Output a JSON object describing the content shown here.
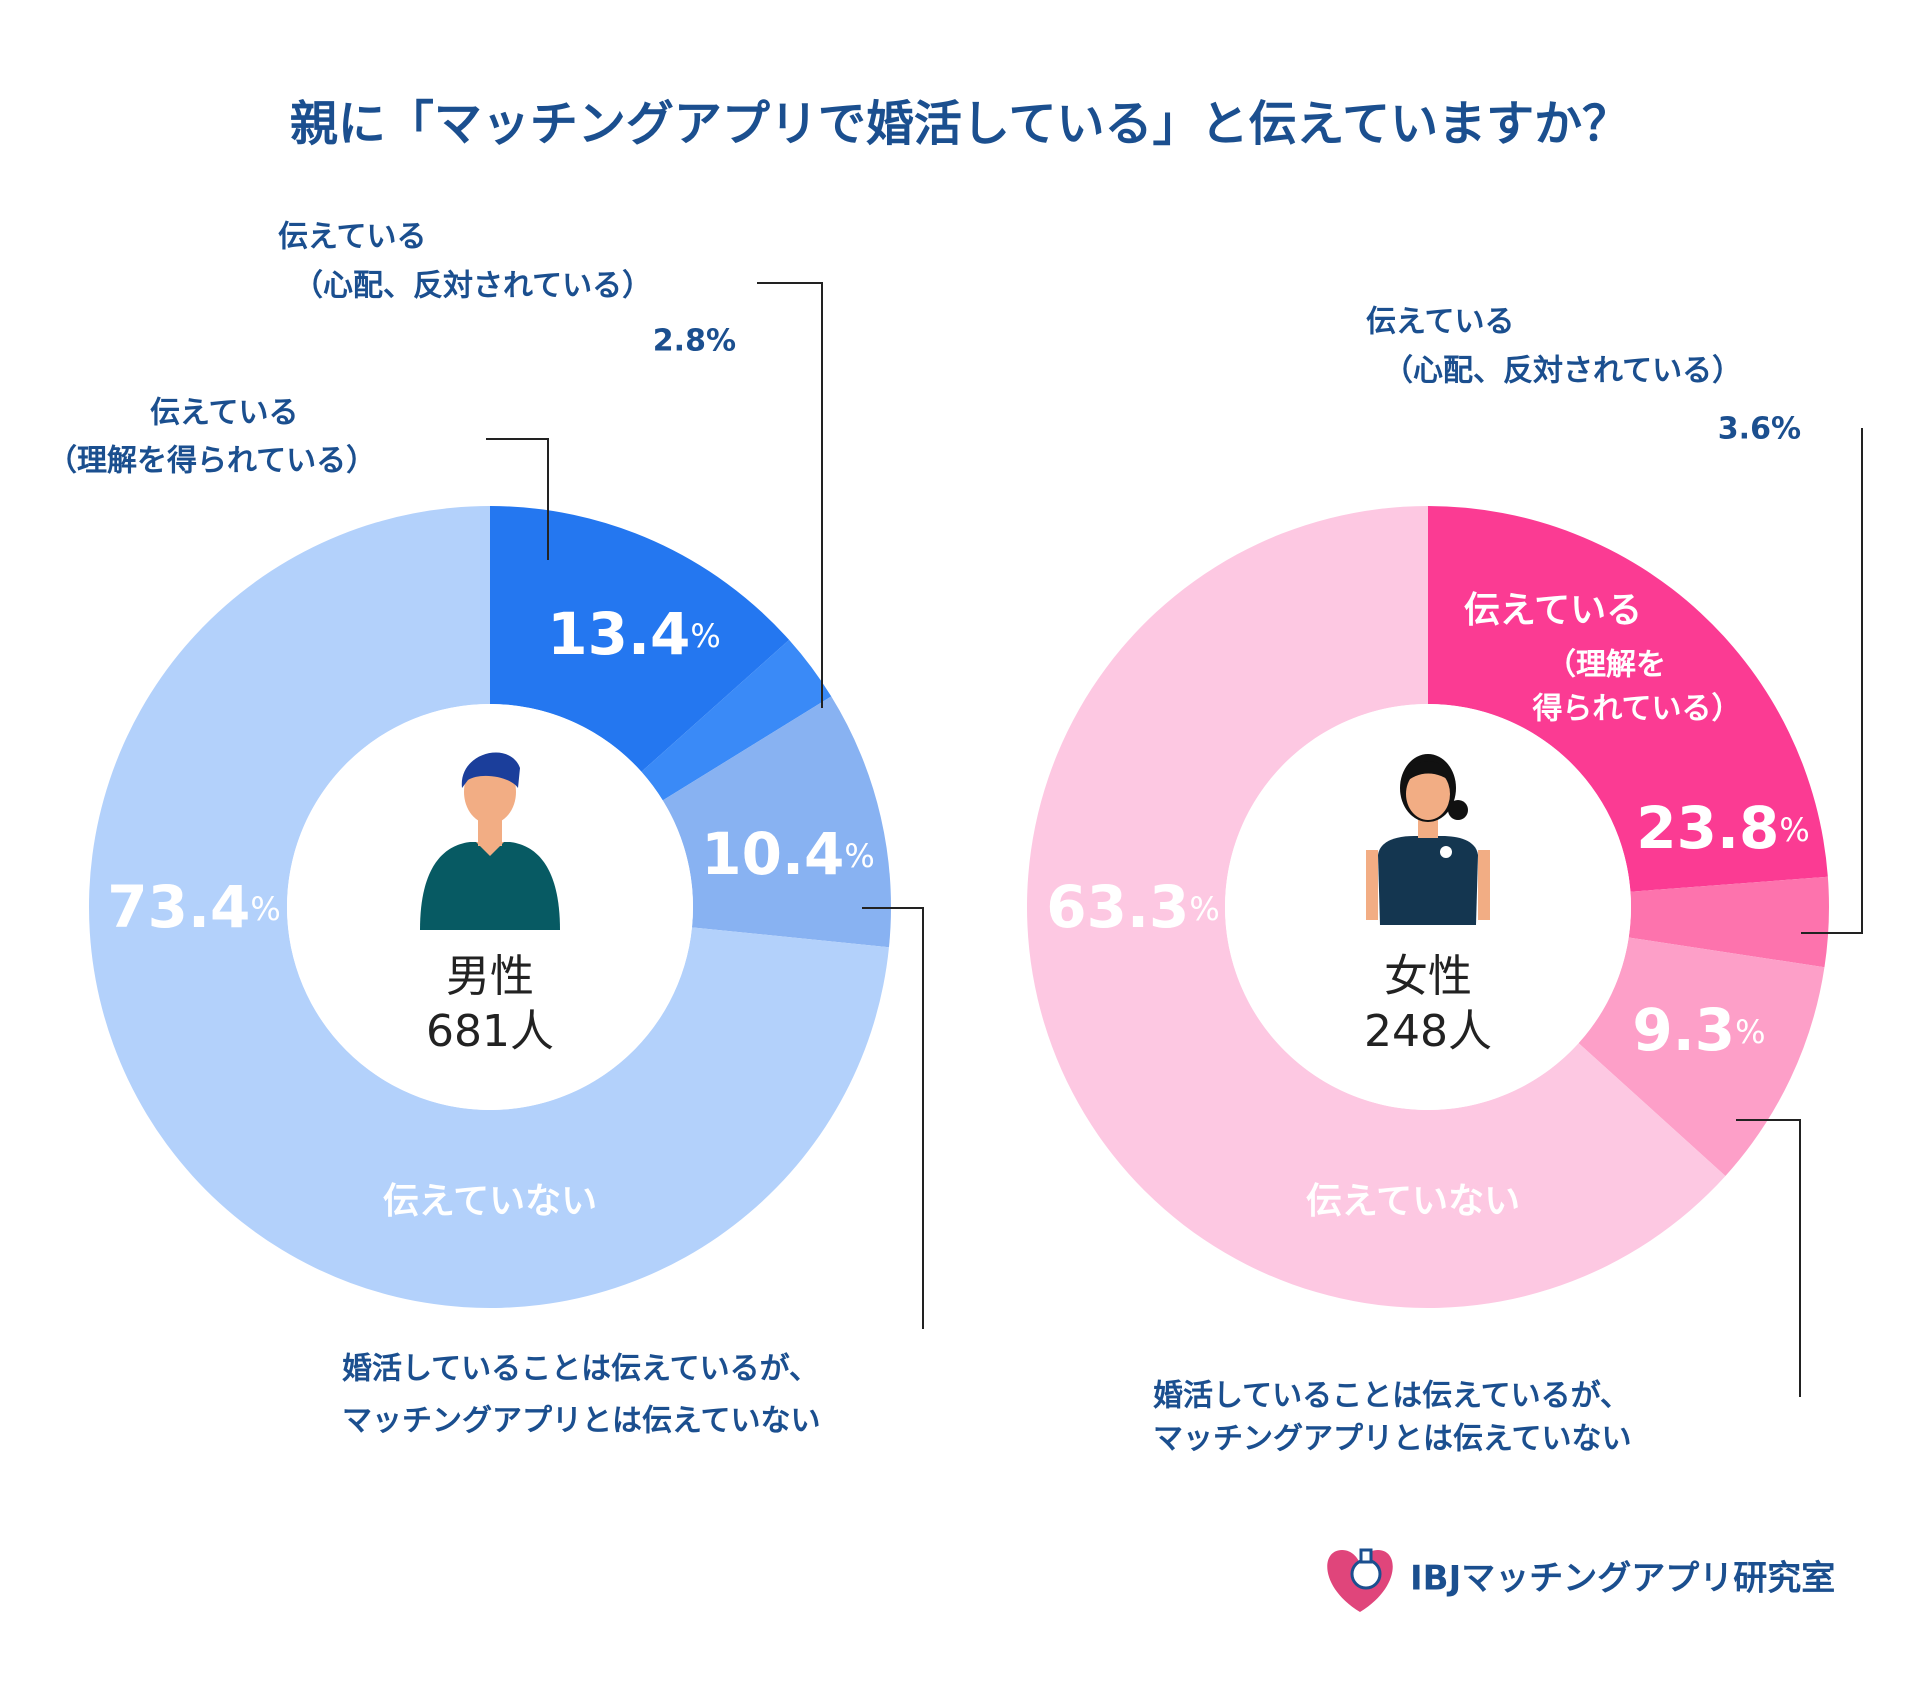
{
  "title": "親に「マッチングアプリで婚活している」と伝えていますか？",
  "chart_data": [
    {
      "type": "pie",
      "center_label": "男性",
      "center_count": "681人",
      "categories": [
        [
          "伝えている",
          "（理解を得られている）"
        ],
        [
          "伝えている",
          "（心配、反対されている）"
        ],
        [
          "婚活していることは伝えているが、",
          "マッチングアプリとは伝えていない"
        ],
        [
          "伝えていない"
        ]
      ],
      "values": [
        13.4,
        2.8,
        10.4,
        73.4
      ],
      "value_labels": [
        "13.4%",
        "2.8%",
        "10.4%",
        "73.4%"
      ],
      "colors": [
        "#2477f0",
        "#3a8af7",
        "#88b2f2",
        "#b3d1fb"
      ]
    },
    {
      "type": "pie",
      "center_label": "女性",
      "center_count": "248人",
      "categories": [
        [
          "伝えている",
          "（理解を",
          "得られている）"
        ],
        [
          "伝えている",
          "（心配、反対されている）"
        ],
        [
          "婚活していることは伝えているが、",
          "マッチングアプリとは伝えていない"
        ],
        [
          "伝えていない"
        ]
      ],
      "values": [
        23.8,
        3.6,
        9.3,
        63.3
      ],
      "value_labels": [
        "23.8%",
        "3.6%",
        "9.3%",
        "63.3%"
      ],
      "colors": [
        "#fb3b93",
        "#fd73ad",
        "#fd9fc8",
        "#fdc8e2"
      ]
    }
  ],
  "logo": "IBJマッチングアプリ研究室"
}
